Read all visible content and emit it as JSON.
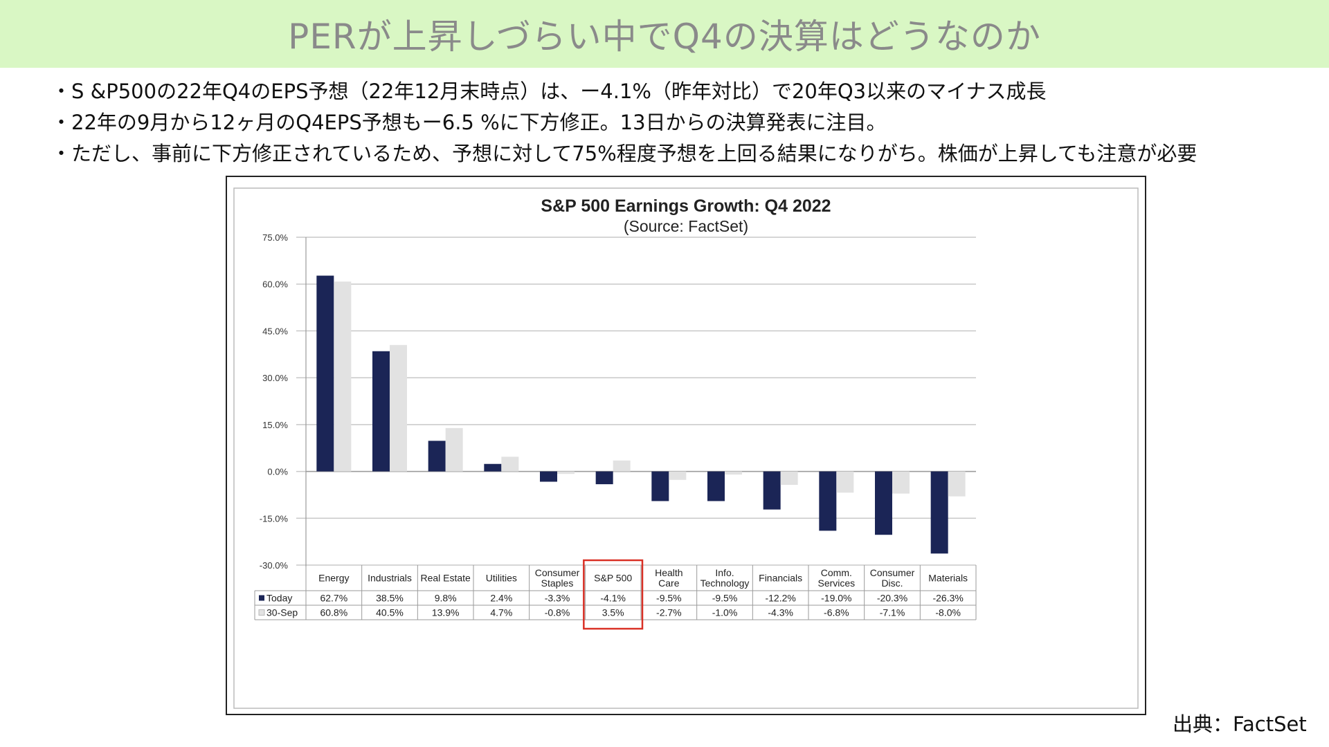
{
  "header": {
    "title": "PERが上昇しづらい中でQ4の決算はどうなのか"
  },
  "bullets": [
    "・S &P500の22年Q4のEPS予想（22年12月末時点）は、ー4.1%（昨年対比）で20年Q3以来のマイナス成長",
    "・22年の9月から12ヶ月のQ4EPS予想もー6.5 %に下方修正。13日からの決算発表に注目。",
    "・ただし、事前に下方修正されているため、予想に対して75%程度予想を上回る結果になりがち。株価が上昇しても注意が必要"
  ],
  "source": "出典：FactSet",
  "chart_data": {
    "type": "bar",
    "title": "S&P 500 Earnings Growth: Q4 2022",
    "subtitle": "(Source: FactSet)",
    "categories": [
      "Energy",
      "Industrials",
      "Real Estate",
      "Utilities",
      "Consumer Staples",
      "S&P 500",
      "Health Care",
      "Info. Technology",
      "Financials",
      "Comm. Services",
      "Consumer Disc.",
      "Materials"
    ],
    "category_lines": [
      [
        "Energy"
      ],
      [
        "Industrials"
      ],
      [
        "Real Estate"
      ],
      [
        "Utilities"
      ],
      [
        "Consumer",
        "Staples"
      ],
      [
        "S&P 500"
      ],
      [
        "Health",
        "Care"
      ],
      [
        "Info.",
        "Technology"
      ],
      [
        "Financials"
      ],
      [
        "Comm.",
        "Services"
      ],
      [
        "Consumer",
        "Disc."
      ],
      [
        "Materials"
      ]
    ],
    "series": [
      {
        "name": "Today",
        "color": "#1b2556",
        "values": [
          62.7,
          38.5,
          9.8,
          2.4,
          -3.3,
          -4.1,
          -9.5,
          -9.5,
          -12.2,
          -19.0,
          -20.3,
          -26.3
        ],
        "labels": [
          "62.7%",
          "38.5%",
          "9.8%",
          "2.4%",
          "-3.3%",
          "-4.1%",
          "-9.5%",
          "-9.5%",
          "-12.2%",
          "-19.0%",
          "-20.3%",
          "-26.3%"
        ]
      },
      {
        "name": "30-Sep",
        "color": "#e2e2e2",
        "values": [
          60.8,
          40.5,
          13.9,
          4.7,
          -0.8,
          3.5,
          -2.7,
          -1.0,
          -4.3,
          -6.8,
          -7.1,
          -8.0
        ],
        "labels": [
          "60.8%",
          "40.5%",
          "13.9%",
          "4.7%",
          "-0.8%",
          "3.5%",
          "-2.7%",
          "-1.0%",
          "-4.3%",
          "-6.8%",
          "-7.1%",
          "-8.0%"
        ]
      }
    ],
    "yticks": [
      75,
      60,
      45,
      30,
      15,
      0,
      -15,
      -30
    ],
    "ytick_labels": [
      "75.0%",
      "60.0%",
      "45.0%",
      "30.0%",
      "15.0%",
      "0.0%",
      "-15.0%",
      "-30.0%"
    ],
    "ylim": [
      -30,
      75
    ],
    "grid": true,
    "legend": "data-table-rows",
    "highlight_category": "S&P 500",
    "highlight_color": "#d93025"
  }
}
